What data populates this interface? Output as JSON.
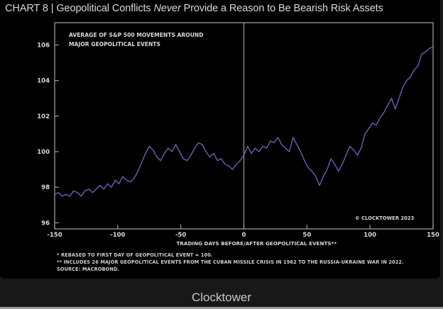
{
  "header": {
    "chart_label": "CHART 8",
    "separator": "|",
    "title_pre": "Geopolitical Conflicts",
    "title_em": "Never",
    "title_post": "Provide a Reason to Be Bearish Risk Assets"
  },
  "colors": {
    "background": "#000000",
    "line": "#6e5fb0",
    "axis": "#9a9a9a",
    "text": "#d8d8d8",
    "footer_bg": "#181818"
  },
  "chart_data": {
    "type": "line",
    "title": "Geopolitical Conflicts Never Provide a Reason to Be Bearish Risk Assets",
    "subtitle": "AVERAGE OF S&P 500 MOVEMENTS AROUND MAJOR GEOPOLITICAL EVENTS",
    "xlabel": "TRADING DAYS BEFORE/AFTER GEOPOLITICAL EVENTS**",
    "ylabel": "",
    "xlim": [
      -150,
      150
    ],
    "ylim": [
      95.7,
      107.3
    ],
    "xticks": [
      -150,
      -100,
      -50,
      0,
      50,
      100,
      150
    ],
    "yticks": [
      96,
      98,
      100,
      102,
      104,
      106
    ],
    "grid": false,
    "vline_at": 0,
    "annotation": "© CLOCKTOWER 2023",
    "series": [
      {
        "name": "S&P 500 average (rebased = 100)",
        "x": [
          -150,
          -147,
          -144,
          -141,
          -138,
          -135,
          -132,
          -129,
          -126,
          -123,
          -120,
          -117,
          -114,
          -111,
          -108,
          -105,
          -102,
          -99,
          -96,
          -93,
          -90,
          -87,
          -84,
          -81,
          -78,
          -75,
          -72,
          -69,
          -66,
          -63,
          -60,
          -57,
          -54,
          -51,
          -48,
          -45,
          -42,
          -39,
          -36,
          -33,
          -30,
          -27,
          -24,
          -21,
          -18,
          -15,
          -12,
          -9,
          -6,
          -3,
          0,
          3,
          6,
          9,
          12,
          15,
          18,
          21,
          24,
          27,
          30,
          33,
          36,
          39,
          42,
          45,
          48,
          51,
          54,
          57,
          60,
          63,
          66,
          69,
          72,
          75,
          78,
          81,
          84,
          87,
          90,
          93,
          96,
          99,
          102,
          105,
          108,
          111,
          114,
          117,
          120,
          123,
          126,
          129,
          132,
          135,
          138,
          141,
          144,
          147,
          150
        ],
        "values": [
          97.6,
          97.7,
          97.5,
          97.6,
          97.5,
          97.8,
          97.7,
          97.5,
          97.8,
          97.9,
          97.7,
          97.9,
          98.1,
          97.9,
          98.2,
          98.0,
          98.4,
          98.2,
          98.6,
          98.4,
          98.3,
          98.5,
          98.9,
          99.4,
          99.9,
          100.3,
          100.1,
          99.7,
          99.5,
          99.9,
          100.2,
          100.0,
          100.4,
          100.0,
          99.6,
          99.5,
          99.8,
          100.2,
          100.5,
          100.4,
          100.0,
          99.7,
          99.9,
          99.5,
          99.6,
          99.3,
          99.2,
          99.0,
          99.3,
          99.5,
          99.8,
          100.3,
          99.9,
          100.2,
          100.0,
          100.3,
          100.2,
          100.6,
          100.5,
          100.8,
          100.4,
          100.2,
          100.0,
          100.8,
          100.4,
          100.0,
          99.5,
          99.1,
          98.9,
          98.6,
          98.1,
          98.6,
          99.0,
          99.6,
          99.3,
          98.9,
          99.3,
          99.8,
          100.3,
          100.1,
          99.8,
          100.2,
          101.0,
          101.3,
          101.6,
          101.5,
          101.9,
          102.2,
          102.6,
          103.0,
          102.4,
          103.0,
          103.6,
          104.0,
          104.2,
          104.6,
          104.8,
          105.5,
          105.6,
          105.8,
          105.9
        ]
      }
    ]
  },
  "chart_text": {
    "inner_title_1": "AVERAGE OF S&P 500 MOVEMENTS AROUND",
    "inner_title_2": "MAJOR GEOPOLITICAL EVENTS",
    "copyright": "© CLOCKTOWER 2023",
    "xlabel": "TRADING DAYS BEFORE/AFTER GEOPOLITICAL EVENTS**"
  },
  "footnotes": {
    "note1": "*  REBASED TO FIRST DAY OF GEOPOLITICAL EVENT = 100.",
    "note2": "** INCLUDES 26 MAJOR GEOPOLITICAL EVENTS FROM THE CUBAN MISSILE CRISIS IN 1962 TO THE RUSSIA-UKRAINE WAR IN 2022.",
    "note3": "SOURCE: MACROBOND."
  },
  "caption": "Clocktower"
}
